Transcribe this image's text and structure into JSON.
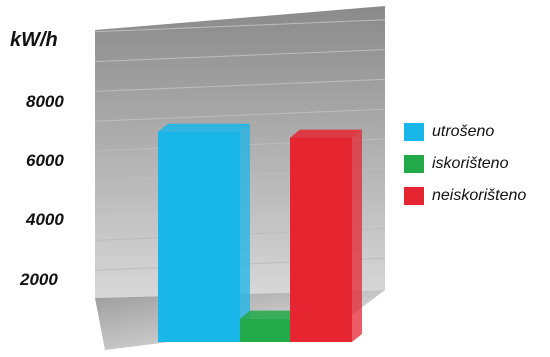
{
  "chart_data": {
    "type": "bar",
    "ylabel": "kW/h",
    "ylim": [
      0,
      9500
    ],
    "yticks": [
      "2000",
      "4000",
      "6000",
      "8000"
    ],
    "grid": true,
    "legend_position": "right",
    "categories": [
      "utrošeno",
      "iskorišteno",
      "neiskorišteno"
    ],
    "values": [
      7200,
      800,
      7000
    ],
    "colors": [
      "#19b6ea",
      "#22a94a",
      "#e52630"
    ]
  }
}
